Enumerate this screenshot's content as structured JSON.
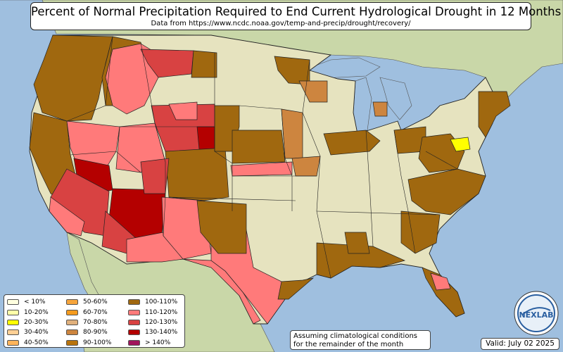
{
  "title": "Percent of Normal Precipitation Required to End Current Hydrological Drought in 12 Months",
  "subtitle": "Data from https://www.ncdc.noaa.gov/temp-and-precip/drought/recovery/",
  "note_lines": [
    "Assuming climatological conditions",
    "for the remainder of the month"
  ],
  "valid_text": "Valid: July 02 2025",
  "logo_text": "NEXLAB",
  "colors": {
    "ocean": "#9fbfdf",
    "land_us": "#e6e3bf",
    "land_foreign": "#c9d7a8",
    "border": "#222222"
  },
  "legend": [
    {
      "label": "< 10%",
      "color": "#ffffe0"
    },
    {
      "label": "10-20%",
      "color": "#ffffa8"
    },
    {
      "label": "20-30%",
      "color": "#ffff00"
    },
    {
      "label": "30-40%",
      "color": "#ffd095"
    },
    {
      "label": "40-50%",
      "color": "#ffb45a"
    },
    {
      "label": "50-60%",
      "color": "#f6a53c"
    },
    {
      "label": "60-70%",
      "color": "#f59b1e"
    },
    {
      "label": "70-80%",
      "color": "#e0b07c"
    },
    {
      "label": "80-90%",
      "color": "#cd853f"
    },
    {
      "label": "90-100%",
      "color": "#b8730d"
    },
    {
      "label": "100-110%",
      "color": "#a0680f"
    },
    {
      "label": "110-120%",
      "color": "#ff7a7a"
    },
    {
      "label": "120-130%",
      "color": "#d84242"
    },
    {
      "label": "130-140%",
      "color": "#b40000"
    },
    {
      "label": "> 140%",
      "color": "#a0145a"
    }
  ]
}
